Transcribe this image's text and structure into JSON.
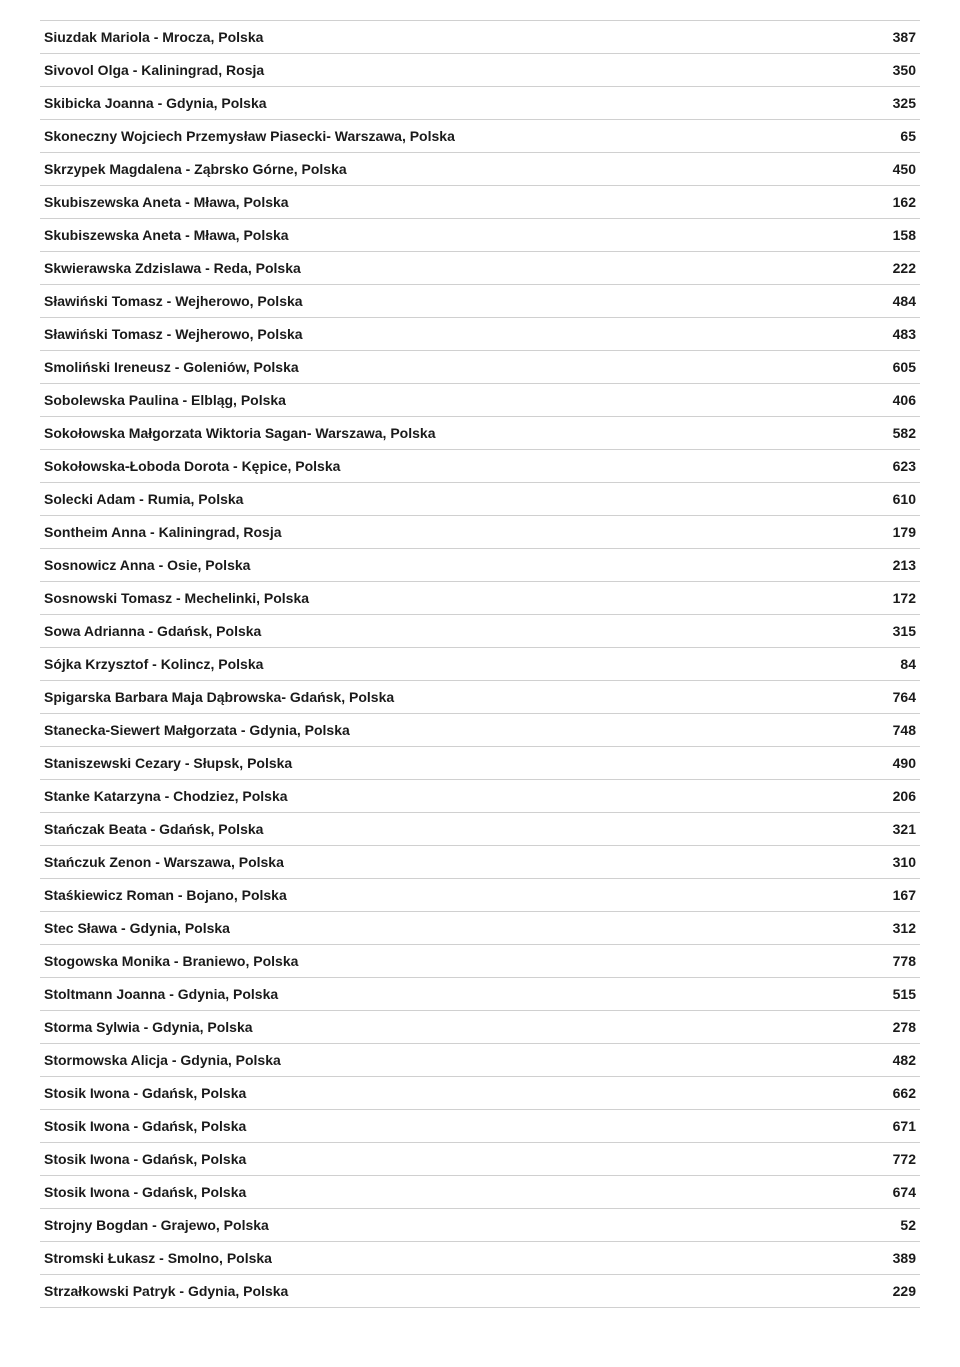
{
  "entries": [
    {
      "name": "Siuzdak Mariola - Mrocza, Polska",
      "value": "387"
    },
    {
      "name": "Sivovol Olga - Kaliningrad, Rosja",
      "value": "350"
    },
    {
      "name": "Skibicka Joanna - Gdynia, Polska",
      "value": "325"
    },
    {
      "name": "Skoneczny Wojciech Przemysław Piasecki- Warszawa, Polska",
      "value": "65"
    },
    {
      "name": "Skrzypek Magdalena - Ząbrsko Górne, Polska",
      "value": "450"
    },
    {
      "name": "Skubiszewska Aneta - Mława, Polska",
      "value": "162"
    },
    {
      "name": "Skubiszewska Aneta - Mława, Polska",
      "value": "158"
    },
    {
      "name": "Skwierawska Zdzislawa - Reda, Polska",
      "value": "222"
    },
    {
      "name": "Sławiński Tomasz - Wejherowo, Polska",
      "value": "484"
    },
    {
      "name": "Sławiński Tomasz - Wejherowo, Polska",
      "value": "483"
    },
    {
      "name": "Smoliński Ireneusz - Goleniów, Polska",
      "value": "605"
    },
    {
      "name": "Sobolewska Paulina - Elbląg, Polska",
      "value": "406"
    },
    {
      "name": "Sokołowska Małgorzata Wiktoria Sagan- Warszawa, Polska",
      "value": "582"
    },
    {
      "name": "Sokołowska-Łoboda Dorota - Kępice, Polska",
      "value": "623"
    },
    {
      "name": "Solecki Adam - Rumia, Polska",
      "value": "610"
    },
    {
      "name": "Sontheim Anna - Kaliningrad, Rosja",
      "value": "179"
    },
    {
      "name": "Sosnowicz Anna - Osie, Polska",
      "value": "213"
    },
    {
      "name": "Sosnowski Tomasz - Mechelinki, Polska",
      "value": "172"
    },
    {
      "name": "Sowa Adrianna - Gdańsk, Polska",
      "value": "315"
    },
    {
      "name": "Sójka Krzysztof - Kolincz, Polska",
      "value": "84"
    },
    {
      "name": "Spigarska Barbara Maja Dąbrowska- Gdańsk, Polska",
      "value": "764"
    },
    {
      "name": "Stanecka-Siewert Małgorzata - Gdynia, Polska",
      "value": "748"
    },
    {
      "name": "Staniszewski Cezary - Słupsk, Polska",
      "value": "490"
    },
    {
      "name": "Stanke Katarzyna - Chodziez, Polska",
      "value": "206"
    },
    {
      "name": "Stańczak Beata - Gdańsk, Polska",
      "value": "321"
    },
    {
      "name": "Stańczuk Zenon - Warszawa, Polska",
      "value": "310"
    },
    {
      "name": "Staśkiewicz Roman - Bojano, Polska",
      "value": "167"
    },
    {
      "name": "Stec Sława - Gdynia, Polska",
      "value": "312"
    },
    {
      "name": "Stogowska Monika - Braniewo, Polska",
      "value": "778"
    },
    {
      "name": "Stoltmann Joanna - Gdynia, Polska",
      "value": "515"
    },
    {
      "name": "Storma Sylwia - Gdynia, Polska",
      "value": "278"
    },
    {
      "name": "Stormowska Alicja - Gdynia, Polska",
      "value": "482"
    },
    {
      "name": "Stosik Iwona - Gdańsk, Polska",
      "value": "662"
    },
    {
      "name": "Stosik Iwona - Gdańsk, Polska",
      "value": "671"
    },
    {
      "name": "Stosik Iwona - Gdańsk, Polska",
      "value": "772"
    },
    {
      "name": "Stosik Iwona - Gdańsk, Polska",
      "value": "674"
    },
    {
      "name": "Strojny Bogdan - Grajewo, Polska",
      "value": "52"
    },
    {
      "name": "Stromski Łukasz - Smolno, Polska",
      "value": "389"
    },
    {
      "name": "Strzałkowski Patryk - Gdynia, Polska",
      "value": "229"
    }
  ]
}
